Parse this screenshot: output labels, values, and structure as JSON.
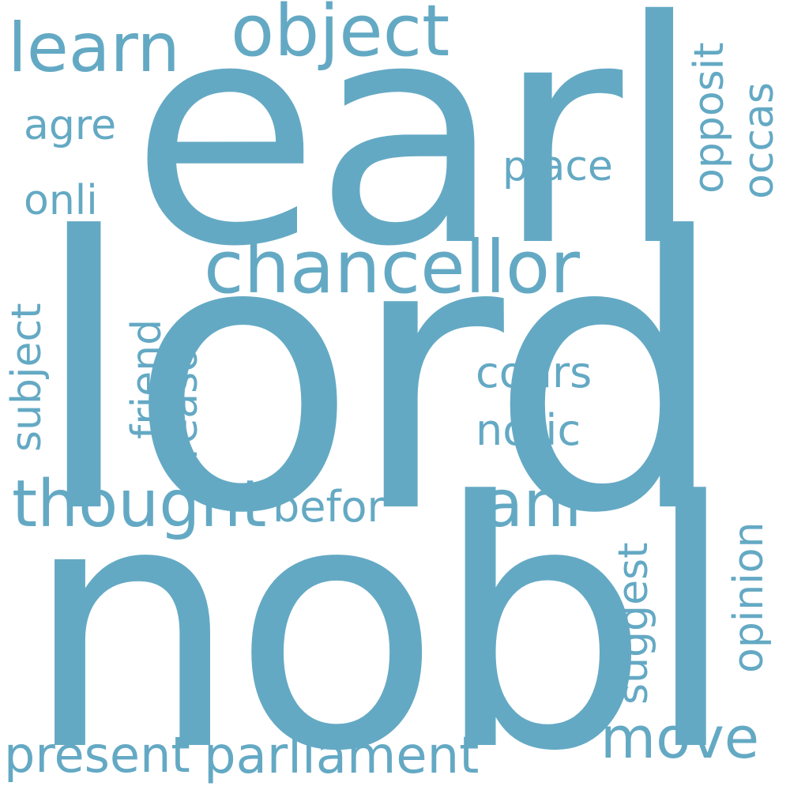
{
  "color": "#64a9c4",
  "words": [
    {
      "text": "lord",
      "weight": 1.0,
      "orientation": "horizontal"
    },
    {
      "text": "earl",
      "weight": 0.75,
      "orientation": "horizontal"
    },
    {
      "text": "nobl",
      "weight": 0.9,
      "orientation": "horizontal"
    },
    {
      "text": "chancellor",
      "weight": 0.28,
      "orientation": "horizontal"
    },
    {
      "text": "object",
      "weight": 0.26,
      "orientation": "horizontal"
    },
    {
      "text": "learn",
      "weight": 0.24,
      "orientation": "horizontal"
    },
    {
      "text": "thought",
      "weight": 0.22,
      "orientation": "horizontal"
    },
    {
      "text": "ani",
      "weight": 0.22,
      "orientation": "horizontal"
    },
    {
      "text": "move",
      "weight": 0.2,
      "orientation": "horizontal"
    },
    {
      "text": "parliament",
      "weight": 0.18,
      "orientation": "horizontal"
    },
    {
      "text": "present",
      "weight": 0.18,
      "orientation": "horizontal"
    },
    {
      "text": "befor",
      "weight": 0.16,
      "orientation": "horizontal"
    },
    {
      "text": "cours",
      "weight": 0.16,
      "orientation": "horizontal"
    },
    {
      "text": "notic",
      "weight": 0.16,
      "orientation": "horizontal"
    },
    {
      "text": "place",
      "weight": 0.15,
      "orientation": "horizontal"
    },
    {
      "text": "agre",
      "weight": 0.15,
      "orientation": "horizontal"
    },
    {
      "text": "onli",
      "weight": 0.15,
      "orientation": "horizontal"
    },
    {
      "text": "subject",
      "weight": 0.16,
      "orientation": "vertical"
    },
    {
      "text": "friend",
      "weight": 0.15,
      "orientation": "vertical"
    },
    {
      "text": "reason",
      "weight": 0.15,
      "orientation": "vertical"
    },
    {
      "text": "opposit",
      "weight": 0.15,
      "orientation": "vertical"
    },
    {
      "text": "occas",
      "weight": 0.15,
      "orientation": "vertical"
    },
    {
      "text": "suggest",
      "weight": 0.16,
      "orientation": "vertical"
    },
    {
      "text": "opinion",
      "weight": 0.16,
      "orientation": "vertical"
    }
  ]
}
